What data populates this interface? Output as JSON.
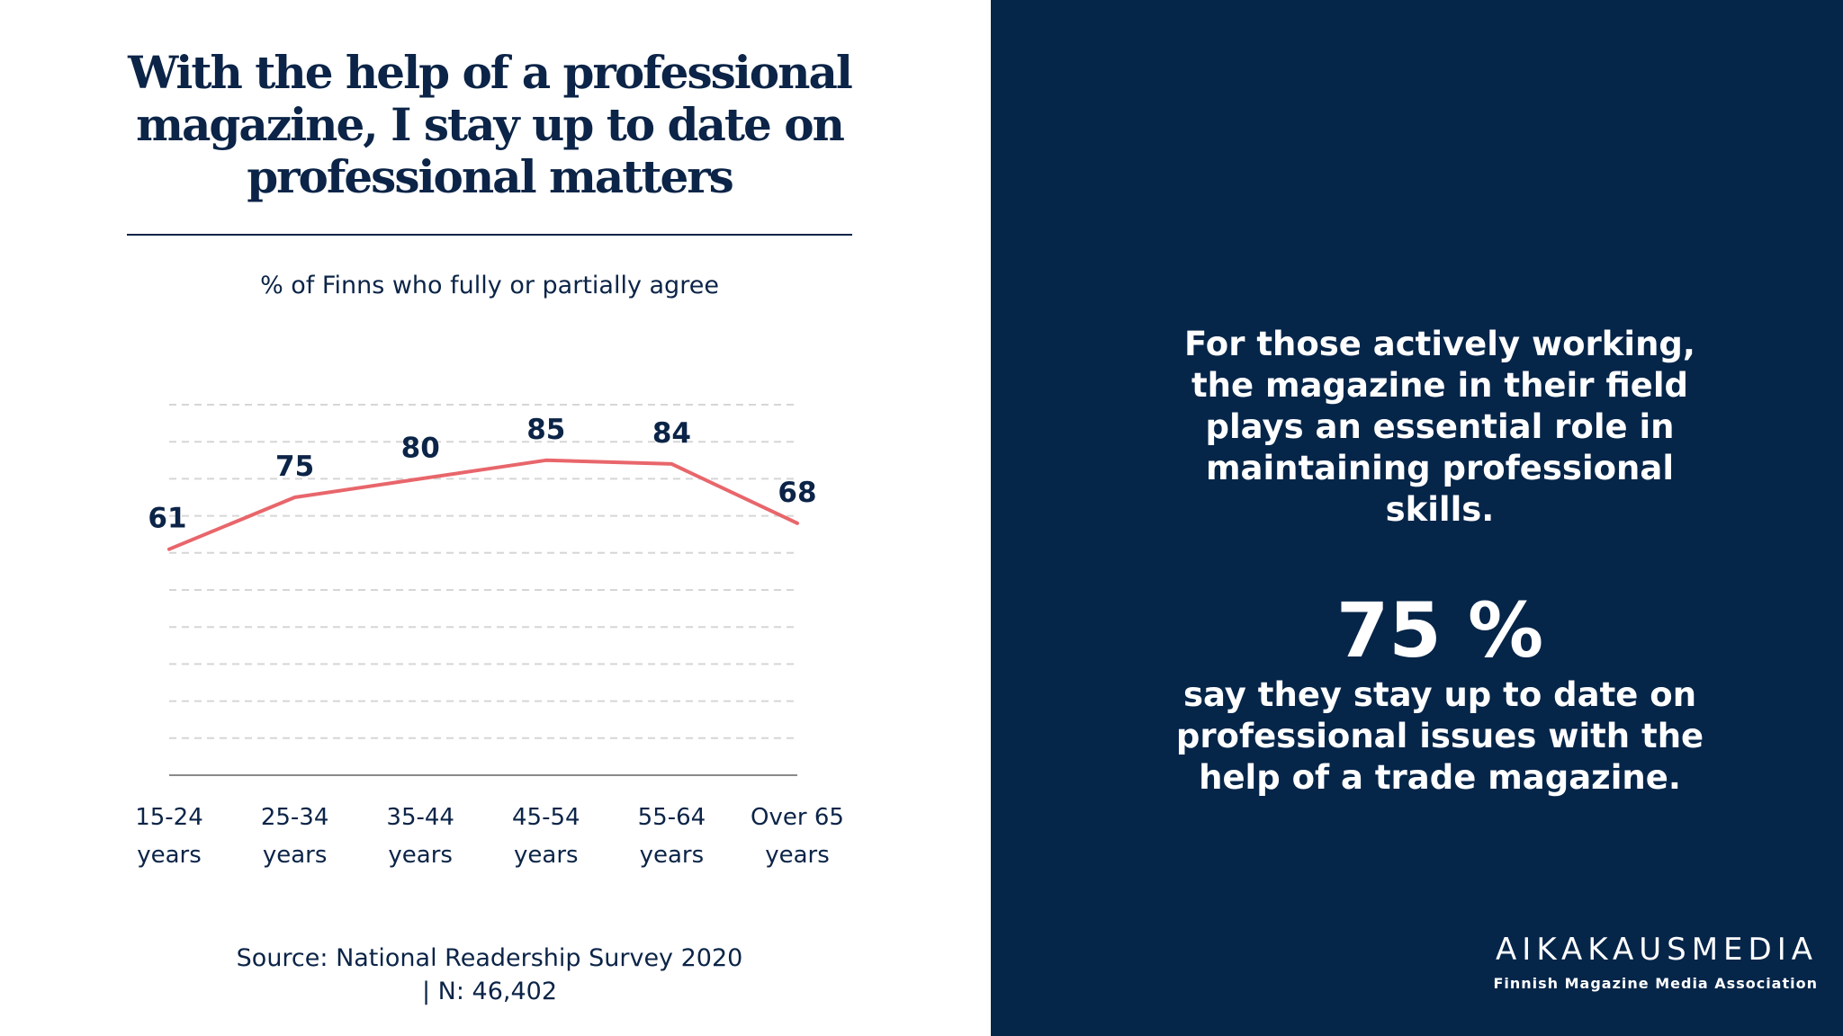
{
  "title": "With the help of a professional magazine, I stay up to date on professional matters",
  "subtitle": "% of Finns who fully or partially agree",
  "source_line1": "Source: National Readership Survey 2020",
  "source_line2": "| N: 46,402",
  "right_text": "For those actively working, the magazine in their field plays an essential role in maintaining professional skills.",
  "big_percent": "75 %",
  "right_stat": "say they stay up to date on professional issues with the help of a trade magazine.",
  "brand_name": "AIKAKAUSMEDIA",
  "brand_tagline": "Finnish Magazine Media Association",
  "colors": {
    "line": "#e8666b",
    "navy": "#052549",
    "text": "#0b2447",
    "grid": "#d6d6d6"
  },
  "chart_data": {
    "type": "line",
    "categories": [
      [
        "15-24",
        "years"
      ],
      [
        "25-34",
        "years"
      ],
      [
        "35-44",
        "years"
      ],
      [
        "45-54",
        "years"
      ],
      [
        "55-64",
        "years"
      ],
      [
        "Over 65",
        "years"
      ]
    ],
    "values": [
      61,
      75,
      80,
      85,
      84,
      68
    ],
    "ylim": [
      0,
      100
    ],
    "grid": true,
    "title": "With the help of a professional magazine, I stay up to date on professional matters",
    "ylabel": "% of Finns who fully or partially agree"
  }
}
